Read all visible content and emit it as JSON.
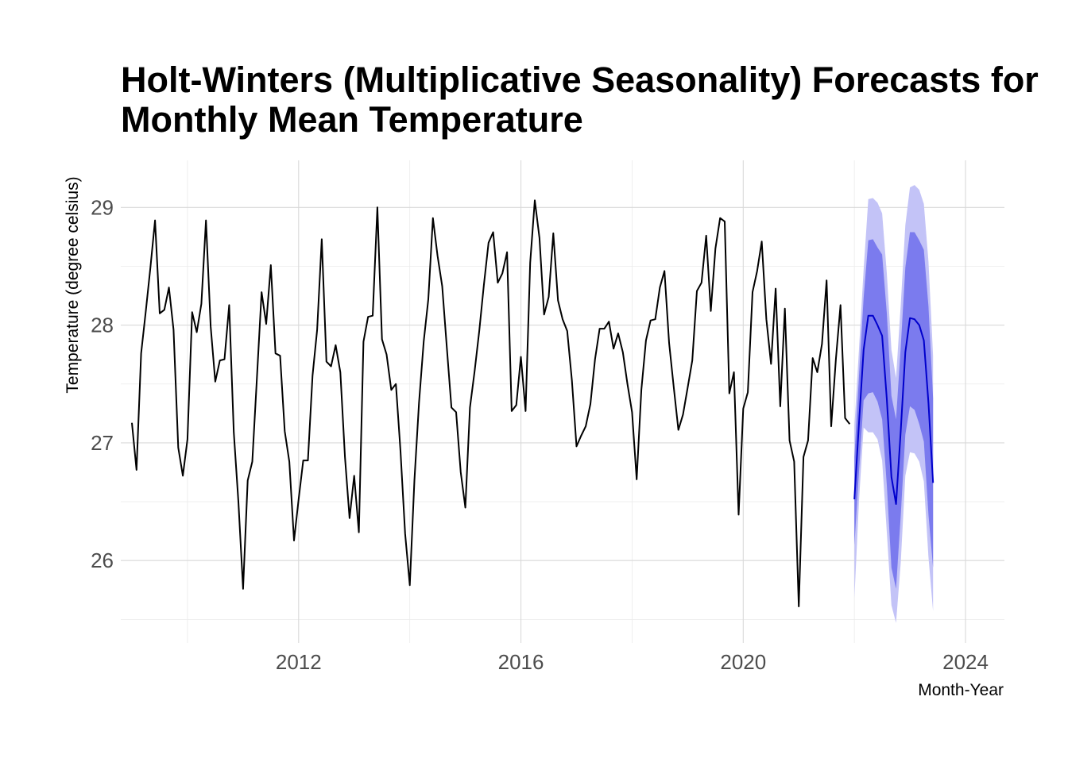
{
  "chart_data": {
    "type": "line",
    "title_lines": [
      "Holt-Winters (Multiplicative Seasonality) Forecasts for",
      "Monthly Mean Temperature"
    ],
    "xlabel": "Month-Year",
    "ylabel": "Temperature (degree celsius)",
    "xlim": [
      2008.8,
      2024.7
    ],
    "ylim": [
      25.3,
      29.4
    ],
    "x_ticks": [
      2012,
      2016,
      2020,
      2024
    ],
    "x_tick_labels": [
      "2012",
      "2016",
      "2020",
      "2024"
    ],
    "x_minor_ticks": [
      2010,
      2014,
      2018,
      2022
    ],
    "y_ticks": [
      26,
      27,
      28,
      29
    ],
    "y_tick_labels": [
      "26",
      "27",
      "28",
      "29"
    ],
    "y_minor_ticks": [
      25.5,
      26.5,
      27.5,
      28.5
    ],
    "grid": true,
    "colors": {
      "observed": "#000000",
      "forecast_line": "#0000cc",
      "band_80": "#7b7bee",
      "band_95": "#c3c3f7"
    },
    "observed": {
      "name": "observed",
      "x_start": 2009.0,
      "step": 0.0833333,
      "values": [
        27.17,
        26.77,
        27.76,
        28.12,
        28.49,
        28.89,
        28.1,
        28.13,
        28.32,
        27.96,
        26.96,
        26.72,
        27.03,
        28.11,
        27.94,
        28.18,
        28.89,
        27.99,
        27.52,
        27.7,
        27.71,
        28.17,
        27.09,
        26.5,
        25.76,
        26.68,
        26.84,
        27.55,
        28.28,
        28.01,
        28.51,
        27.76,
        27.74,
        27.1,
        26.84,
        26.17,
        26.52,
        26.85,
        26.85,
        27.57,
        27.96,
        28.73,
        27.69,
        27.65,
        27.83,
        27.6,
        26.88,
        26.36,
        26.72,
        26.24,
        27.86,
        28.07,
        28.08,
        29.0,
        27.88,
        27.75,
        27.45,
        27.5,
        26.93,
        26.23,
        25.79,
        26.68,
        27.34,
        27.86,
        28.22,
        28.91,
        28.59,
        28.33,
        27.81,
        27.3,
        27.26,
        26.75,
        26.45,
        27.3,
        27.61,
        27.95,
        28.34,
        28.7,
        28.79,
        28.36,
        28.44,
        28.62,
        27.27,
        27.32,
        27.73,
        27.27,
        28.53,
        29.06,
        28.74,
        28.09,
        28.24,
        28.78,
        28.21,
        28.05,
        27.95,
        27.53,
        26.97,
        27.06,
        27.14,
        27.33,
        27.71,
        27.97,
        27.97,
        28.03,
        27.8,
        27.93,
        27.77,
        27.5,
        27.26,
        26.69,
        27.45,
        27.87,
        28.04,
        28.05,
        28.32,
        28.46,
        27.85,
        27.47,
        27.11,
        27.24,
        27.47,
        27.7,
        28.29,
        28.36,
        28.76,
        28.12,
        28.65,
        28.91,
        28.88,
        27.42,
        27.6,
        26.39,
        27.29,
        27.43,
        28.28,
        28.46,
        28.71,
        28.05,
        27.67,
        28.31,
        27.31,
        28.14,
        27.02,
        26.84,
        25.61,
        26.88,
        27.02,
        27.72,
        27.6,
        27.84,
        28.38,
        27.14,
        27.71,
        28.17,
        27.21,
        27.16
      ]
    },
    "forecast": {
      "name": "forecast",
      "x_start": 2022.0,
      "step": 0.0833333,
      "mean": [
        26.52,
        27.17,
        27.79,
        28.08,
        28.08,
        28.0,
        27.91,
        27.37,
        26.71,
        26.48,
        27.1,
        27.77,
        28.06,
        28.05,
        28.0,
        27.87,
        27.34,
        26.66
      ],
      "lo80": [
        26.13,
        26.76,
        27.36,
        27.42,
        27.43,
        27.35,
        27.2,
        26.64,
        25.94,
        25.76,
        26.38,
        27.07,
        27.31,
        27.28,
        27.16,
        27.01,
        26.39,
        25.94
      ],
      "hi80": [
        26.88,
        27.57,
        28.23,
        28.72,
        28.73,
        28.66,
        28.6,
        28.1,
        27.4,
        27.2,
        27.81,
        28.49,
        28.79,
        28.79,
        28.72,
        28.64,
        28.16,
        27.38
      ],
      "lo95": [
        25.68,
        26.51,
        27.13,
        27.09,
        27.09,
        27.03,
        26.85,
        26.24,
        25.62,
        25.47,
        25.98,
        26.72,
        26.92,
        26.91,
        26.84,
        26.67,
        26.03,
        25.57
      ],
      "hi95": [
        27.14,
        27.8,
        28.47,
        29.07,
        29.08,
        29.04,
        28.95,
        28.44,
        27.79,
        27.55,
        28.17,
        28.85,
        29.17,
        29.19,
        29.15,
        29.03,
        28.54,
        27.74
      ]
    }
  }
}
